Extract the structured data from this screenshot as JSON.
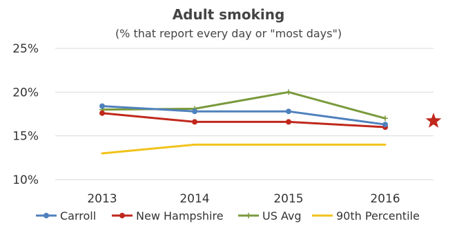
{
  "chart_data": {
    "type": "line",
    "title": "Adult smoking",
    "subtitle": "(% that report every day or \"most days\")",
    "categories": [
      "2013",
      "2014",
      "2015",
      "2016"
    ],
    "ylim": [
      10,
      25
    ],
    "yticks": [
      10,
      15,
      20,
      25
    ],
    "ytick_labels": [
      "10%",
      "15%",
      "20%",
      "25%"
    ],
    "grid": true,
    "legend_position": "bottom",
    "series": [
      {
        "name": "Carroll",
        "values": [
          18.4,
          17.8,
          17.8,
          16.3
        ],
        "color": "#4f81bd",
        "marker": "circle"
      },
      {
        "name": "New Hampshire",
        "values": [
          17.6,
          16.6,
          16.6,
          16.0
        ],
        "color": "#c0281c",
        "marker": "circle"
      },
      {
        "name": "US Avg",
        "values": [
          18.0,
          18.1,
          20.0,
          17.0
        ],
        "color": "#7a9a3c",
        "marker": "plus"
      },
      {
        "name": "90th Percentile",
        "values": [
          13.0,
          14.0,
          14.0,
          14.0
        ],
        "color": "#f2c21a",
        "marker": "none"
      }
    ],
    "annotations": [
      {
        "type": "star",
        "color": "#c0281c",
        "near": "2016",
        "value": 16.7
      }
    ]
  }
}
